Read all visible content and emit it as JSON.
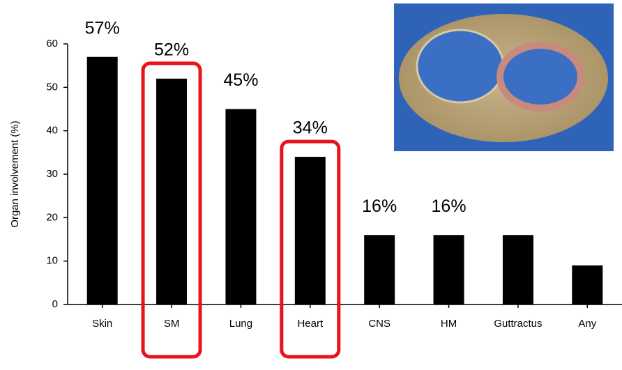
{
  "chart_data": {
    "type": "bar",
    "y_label": "Organ involvement (%)",
    "categories": [
      "Skin",
      "SM",
      "Lung",
      "Heart",
      "CNS",
      "HM",
      "Guttractus",
      "Any"
    ],
    "values": [
      57,
      52,
      45,
      34,
      16,
      16,
      16,
      9
    ],
    "value_labels": [
      "57%",
      "52%",
      "45%",
      "34%",
      "16%",
      "16%",
      null,
      null
    ],
    "color": "#000000",
    "ylim": [
      0,
      60
    ],
    "yticks": [
      0,
      10,
      20,
      30,
      40,
      50,
      60
    ],
    "grid": false
  }
}
